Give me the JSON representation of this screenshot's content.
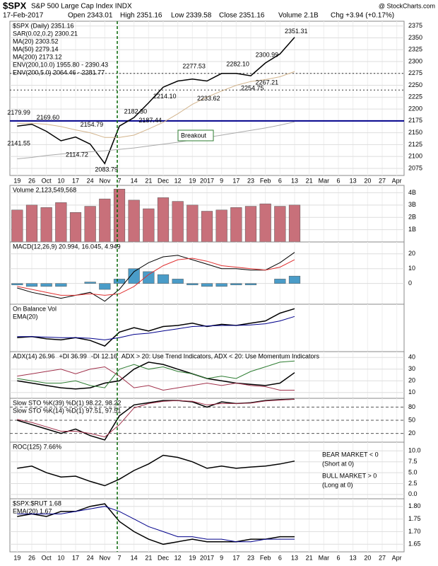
{
  "header": {
    "symbol": "$SPX",
    "name": "S&P 500 Large Cap Index INDX",
    "brand": "@ StockCharts.com",
    "date": "17-Feb-2017",
    "open": "Open 2343.01",
    "high": "High 2351.16",
    "low": "Low 2339.58",
    "close": "Close 2351.16",
    "volume": "Volume 2.1B",
    "change": "Chg +3.94 (+0.17%)"
  },
  "chart_data": [
    {
      "type": "line",
      "categories": [
        "19",
        "26",
        "Oct",
        "10",
        "17",
        "24",
        "Nov",
        "7",
        "14",
        "21",
        "Dec",
        "12",
        "19",
        "2017",
        "9",
        "17",
        "23",
        "Feb",
        "6",
        "13",
        "21",
        "Mar",
        "6",
        "13",
        "20",
        "27",
        "Apr"
      ],
      "ylim": [
        2060,
        2385
      ],
      "yticks": [
        2075,
        2100,
        2125,
        2150,
        2175,
        2200,
        2225,
        2250,
        2275,
        2300,
        2325,
        2350,
        2375
      ],
      "legend": [
        {
          "text": "$SPX (Daily) 2351.16",
          "color": "#000000"
        },
        {
          "text": "SAR(0.02,0.2) 2300.21",
          "color": "#8888aa"
        },
        {
          "text": "MA(20) 2303.52",
          "color": "#b8860b"
        },
        {
          "text": "MA(50) 2279.14",
          "color": "#cc3333"
        },
        {
          "text": "MA(200) 2173.12",
          "color": "#000000"
        },
        {
          "text": "ENV(200,10.0) 1955.80 - 2390.43",
          "color": "#000000"
        },
        {
          "text": "ENV(200,5.0) 2064.46 - 2281.77",
          "color": "#999999"
        }
      ],
      "series": [
        {
          "color": "#000000",
          "values": [
            2164,
            2168,
            2153,
            2133,
            2141,
            2126,
            2085,
            2164,
            2182,
            2213,
            2246,
            2259,
            2263,
            2259,
            2275,
            2275,
            2270,
            2297,
            2316,
            2351,
            null,
            null,
            null,
            null,
            null,
            null,
            null
          ]
        },
        {
          "color": "#d2b48c",
          "values": [
            2170,
            2170,
            2168,
            2163,
            2156,
            2150,
            2140,
            2140,
            2145,
            2158,
            2172,
            2190,
            2210,
            2225,
            2238,
            2250,
            2258,
            2262,
            2268,
            2279,
            null,
            null,
            null,
            null,
            null,
            null,
            null
          ]
        },
        {
          "color": "#aaaaaa",
          "values": [
            2095,
            2098,
            2102,
            2105,
            2108,
            2110,
            2112,
            2115,
            2118,
            2122,
            2126,
            2130,
            2135,
            2140,
            2145,
            2150,
            2155,
            2160,
            2166,
            2173,
            null,
            null,
            null,
            null,
            null,
            null,
            null
          ]
        }
      ],
      "hlines": [
        {
          "value": 2175,
          "color": "#00008b"
        },
        {
          "value": 2275,
          "color": "#333333"
        },
        {
          "value": 2240,
          "color": "#333333"
        }
      ],
      "annotations": [
        {
          "label": "2179.99",
          "value": 2179.99
        },
        {
          "label": "2169.60",
          "value": 2169.6
        },
        {
          "label": "2154.79",
          "value": 2154.79
        },
        {
          "label": "2141.55",
          "value": 2141.55
        },
        {
          "label": "2114.72",
          "value": 2114.72
        },
        {
          "label": "2083.79",
          "value": 2083.79
        },
        {
          "label": "2182.30",
          "value": 2182.3
        },
        {
          "label": "2187.44",
          "value": 2187.44
        },
        {
          "label": "2214.10",
          "value": 2214.1
        },
        {
          "label": "2277.53",
          "value": 2277.53
        },
        {
          "label": "2282.10",
          "value": 2282.1
        },
        {
          "label": "2233.62",
          "value": 2233.62
        },
        {
          "label": "2254.75",
          "value": 2254.75
        },
        {
          "label": "2300.99",
          "value": 2300.99
        },
        {
          "label": "2267.21",
          "value": 2267.21
        },
        {
          "label": "2351.31",
          "value": 2351.31
        }
      ],
      "note": "Breakout"
    },
    {
      "type": "bar",
      "ylim": [
        0,
        4.6
      ],
      "yticks": [
        {
          "value": 1,
          "label": "1B"
        },
        {
          "value": 2,
          "label": "2B"
        },
        {
          "value": 3,
          "label": "3B"
        },
        {
          "value": 4,
          "label": "4B"
        }
      ],
      "legend": [
        {
          "text": "Volume 2,123,549,568",
          "color": "#000000"
        }
      ],
      "series": [
        {
          "type": "bar",
          "color": "#c8707a",
          "values": [
            2.6,
            3.0,
            2.8,
            3.2,
            2.4,
            2.9,
            3.5,
            4.3,
            3.4,
            2.7,
            3.6,
            3.3,
            3.0,
            2.5,
            2.6,
            2.8,
            2.9,
            3.1,
            2.9,
            3.0,
            null,
            null,
            null,
            null,
            null,
            null,
            null
          ]
        }
      ]
    },
    {
      "type": "line",
      "ylim": [
        -14,
        28
      ],
      "yticks": [
        0,
        10,
        20
      ],
      "legend": [
        {
          "text": "MACD(12,26,9) 20.994, 16.045, 4.949",
          "color": "#000000"
        }
      ],
      "series": [
        {
          "type": "bar",
          "color": "#4a9cc8",
          "values": [
            -1,
            -2,
            -2,
            -2,
            0,
            1,
            -4,
            3,
            10,
            8,
            6,
            3,
            -1,
            -2,
            -2,
            -1,
            -1,
            0,
            3,
            5,
            null,
            null,
            null,
            null,
            null,
            null,
            null
          ]
        },
        {
          "color": "#000000",
          "values": [
            -3,
            -6,
            -8,
            -10,
            -8,
            -6,
            -12,
            -4,
            8,
            14,
            18,
            19,
            16,
            13,
            10,
            10,
            9,
            9,
            14,
            21,
            null,
            null,
            null,
            null,
            null,
            null,
            null
          ]
        },
        {
          "color": "#e03030",
          "values": [
            -2,
            -4,
            -6,
            -8,
            -8,
            -7,
            -8,
            -7,
            -2,
            6,
            12,
            16,
            17,
            15,
            12,
            11,
            10,
            9,
            11,
            16,
            null,
            null,
            null,
            null,
            null,
            null,
            null
          ]
        }
      ]
    },
    {
      "type": "line",
      "ylim": [
        15,
        100
      ],
      "yticks": [],
      "legend": [
        {
          "text": "On Balance Vol",
          "color": "#000000"
        },
        {
          "text": "EMA(20)",
          "color": "#00008b"
        }
      ],
      "series": [
        {
          "color": "#000000",
          "values": [
            40,
            42,
            38,
            36,
            40,
            35,
            25,
            50,
            58,
            52,
            60,
            62,
            66,
            60,
            64,
            62,
            66,
            70,
            84,
            92,
            null,
            null,
            null,
            null,
            null,
            null,
            null
          ]
        },
        {
          "color": "#00008b",
          "values": [
            42,
            42,
            41,
            40,
            40,
            39,
            36,
            40,
            46,
            48,
            52,
            56,
            60,
            61,
            62,
            62,
            63,
            65,
            70,
            78,
            null,
            null,
            null,
            null,
            null,
            null,
            null
          ]
        }
      ]
    },
    {
      "type": "line",
      "ylim": [
        5,
        45
      ],
      "yticks": [
        10,
        20,
        30,
        40
      ],
      "inline": true,
      "legend": [
        {
          "text": "ADX(14) 26.96",
          "color": "#000000"
        },
        {
          "text": "+DI 36.99",
          "color": "#2e7d32"
        },
        {
          "text": "-DI 12.16",
          "color": "#a0304a"
        },
        {
          "text": "ADX > 20: Use Trend Indicators, ADX < 20: Use Momentum Indicators",
          "color": "#000000"
        }
      ],
      "series": [
        {
          "color": "#000000",
          "values": [
            20,
            18,
            16,
            14,
            13,
            14,
            18,
            20,
            30,
            36,
            34,
            30,
            26,
            22,
            20,
            18,
            17,
            16,
            18,
            27,
            null,
            null,
            null,
            null,
            null,
            null,
            null
          ]
        },
        {
          "color": "#2e7d32",
          "values": [
            22,
            20,
            18,
            18,
            20,
            16,
            14,
            30,
            34,
            30,
            32,
            28,
            26,
            22,
            24,
            22,
            28,
            32,
            36,
            37,
            null,
            null,
            null,
            null,
            null,
            null,
            null
          ]
        },
        {
          "color": "#a0304a",
          "values": [
            24,
            26,
            28,
            30,
            26,
            30,
            32,
            24,
            14,
            16,
            12,
            14,
            16,
            18,
            16,
            18,
            16,
            15,
            12,
            12,
            null,
            null,
            null,
            null,
            null,
            null,
            null
          ]
        }
      ]
    },
    {
      "type": "line",
      "ylim": [
        0,
        100
      ],
      "yticks": [
        20,
        50,
        80
      ],
      "grid": true,
      "legend": [
        {
          "text": "Slow STO %K(39) %D(1) 98.22, 98.22",
          "color": "#000000"
        },
        {
          "text": "Slow STO %K(14) %D(1) 97.51, 97.51",
          "color": "#a0304a"
        }
      ],
      "series": [
        {
          "color": "#000000",
          "values": [
            50,
            40,
            30,
            20,
            30,
            15,
            5,
            60,
            85,
            90,
            95,
            95,
            92,
            80,
            92,
            88,
            90,
            95,
            97,
            98,
            null,
            null,
            null,
            null,
            null,
            null,
            null
          ]
        },
        {
          "color": "#a0304a",
          "values": [
            52,
            45,
            35,
            25,
            25,
            20,
            12,
            40,
            78,
            88,
            93,
            95,
            93,
            85,
            88,
            88,
            89,
            94,
            96,
            98,
            null,
            null,
            null,
            null,
            null,
            null,
            null
          ]
        }
      ]
    },
    {
      "type": "line",
      "ylim": [
        -1,
        12
      ],
      "yticks": [
        {
          "value": 0,
          "label": "0.0"
        },
        2.5,
        {
          "value": 5,
          "label": "5.0"
        },
        7.5,
        {
          "value": 10,
          "label": "10.0"
        }
      ],
      "legend": [
        {
          "text": "ROC(125) 7.66%",
          "color": "#000000"
        }
      ],
      "annotations": [
        {
          "label": "BEAR MARKET < 0",
          "color": "#cc0000"
        },
        {
          "label": "(Short at 0)",
          "color": "#cc0000"
        },
        {
          "label": "BULL MARKET > 0",
          "color": "#006400"
        },
        {
          "label": "(Long at 0)",
          "color": "#006400"
        }
      ],
      "series": [
        {
          "color": "#000000",
          "values": [
            6,
            6.5,
            5,
            4,
            4.2,
            3,
            2,
            3.5,
            5.5,
            7,
            9,
            8.5,
            7.5,
            6,
            6.5,
            6,
            6.3,
            6.5,
            7,
            7.66,
            null,
            null,
            null,
            null,
            null,
            null,
            null
          ]
        }
      ]
    },
    {
      "type": "line",
      "categories": [
        "19",
        "26",
        "Oct",
        "10",
        "17",
        "24",
        "Nov",
        "7",
        "14",
        "21",
        "Dec",
        "12",
        "19",
        "2017",
        "9",
        "17",
        "23",
        "Feb",
        "6",
        "13",
        "21",
        "Mar",
        "6",
        "13",
        "20",
        "27",
        "Apr"
      ],
      "ylim": [
        1.62,
        1.83
      ],
      "yticks": [
        1.65,
        {
          "value": 1.7,
          "label": "1.70"
        },
        1.75,
        {
          "value": 1.8,
          "label": "1.80"
        }
      ],
      "legend": [
        {
          "text": "$SPX:$RUT 1.68",
          "color": "#000000"
        },
        {
          "text": "EMA(20) 1.67",
          "color": "#00008b"
        }
      ],
      "series": [
        {
          "color": "#000000",
          "values": [
            1.76,
            1.77,
            1.76,
            1.78,
            1.78,
            1.8,
            1.81,
            1.74,
            1.7,
            1.67,
            1.65,
            1.66,
            1.67,
            1.66,
            1.66,
            1.66,
            1.67,
            1.67,
            1.68,
            1.68,
            null,
            null,
            null,
            null,
            null,
            null,
            null
          ]
        },
        {
          "color": "#00008b",
          "values": [
            1.77,
            1.77,
            1.77,
            1.77,
            1.78,
            1.79,
            1.8,
            1.78,
            1.75,
            1.72,
            1.7,
            1.68,
            1.68,
            1.67,
            1.67,
            1.66,
            1.66,
            1.67,
            1.67,
            1.67,
            null,
            null,
            null,
            null,
            null,
            null,
            null
          ]
        }
      ]
    }
  ]
}
